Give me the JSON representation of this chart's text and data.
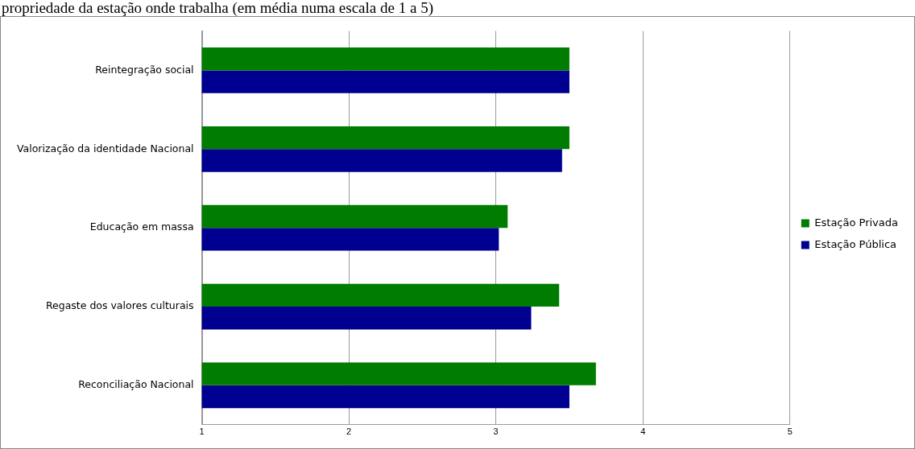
{
  "chart_data": {
    "type": "bar",
    "orientation": "horizontal",
    "title": "propriedade da estação onde trabalha (em média numa escala de 1 a 5)",
    "categories": [
      "Reintegração social",
      "Valorização da identidade Nacional",
      "Educação em massa",
      "Regaste dos valores culturais",
      "Reconciliação Nacional"
    ],
    "series": [
      {
        "name": "Estação Privada",
        "color": "#007c00",
        "values": [
          3.5,
          3.5,
          3.08,
          3.43,
          3.68
        ]
      },
      {
        "name": "Estação Pública",
        "color": "#000090",
        "values": [
          3.5,
          3.45,
          3.02,
          3.24,
          3.5
        ]
      }
    ],
    "xlim": [
      1,
      5
    ],
    "xticks": [
      1,
      2,
      3,
      4,
      5
    ],
    "grid": "x",
    "legend": "right"
  }
}
